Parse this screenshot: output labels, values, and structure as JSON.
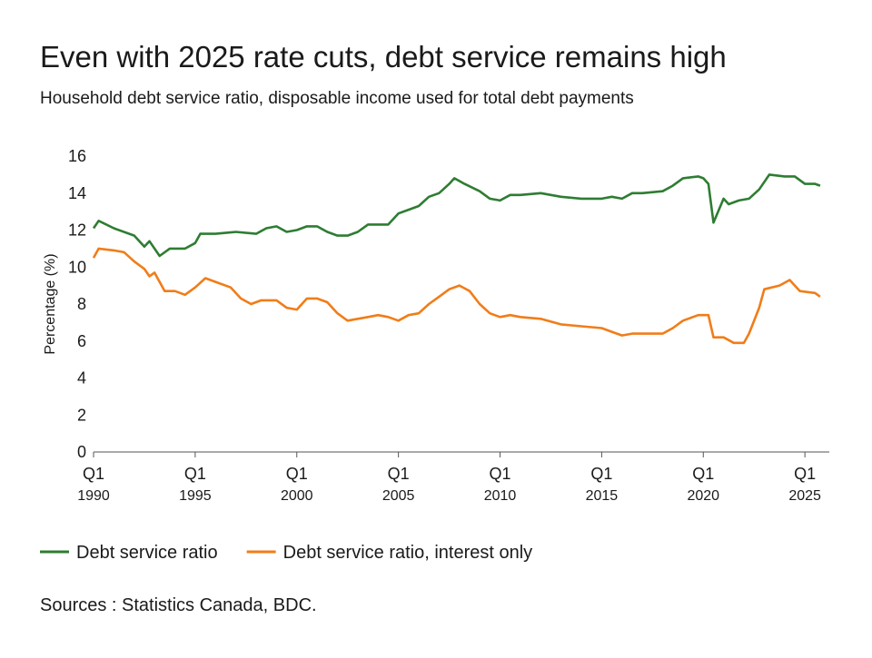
{
  "chart_data": {
    "type": "line",
    "title": "Even with 2025 rate cuts, debt service remains high",
    "subtitle": "Household debt service ratio, disposable income used for total debt payments",
    "y_label": "Percentage (%)",
    "source": "Sources : Statistics Canada, BDC.",
    "legend": "bottom-left",
    "grid": false,
    "xlim": [
      1990,
      2026.2
    ],
    "ylim": [
      0,
      16
    ],
    "yticks": [
      0,
      2,
      4,
      6,
      8,
      10,
      12,
      14,
      16
    ],
    "xticks": [
      {
        "value": 1990,
        "label": "1990",
        "period": "Q1"
      },
      {
        "value": 1995,
        "label": "1995",
        "period": "Q1"
      },
      {
        "value": 2000,
        "label": "2000",
        "period": "Q1"
      },
      {
        "value": 2005,
        "label": "2005",
        "period": "Q1"
      },
      {
        "value": 2010,
        "label": "2010",
        "period": "Q1"
      },
      {
        "value": 2015,
        "label": "2015",
        "period": "Q1"
      },
      {
        "value": 2020,
        "label": "2020",
        "period": "Q1"
      },
      {
        "value": 2025,
        "label": "2025",
        "period": "Q1"
      }
    ],
    "series": [
      {
        "name": "Debt service ratio",
        "color": "#2e7d32",
        "x": [
          1990,
          1990.25,
          1991,
          1992,
          1992.5,
          1992.75,
          1993.25,
          1993.75,
          1994.5,
          1995,
          1995.25,
          1996,
          1997,
          1998,
          1998.5,
          1999,
          1999.5,
          2000,
          2000.5,
          2001,
          2001.5,
          2002,
          2002.5,
          2003,
          2003.5,
          2004,
          2004.5,
          2005,
          2005.5,
          2006,
          2006.5,
          2007,
          2007.5,
          2007.75,
          2008.25,
          2009,
          2009.5,
          2010,
          2010.5,
          2011,
          2012,
          2013,
          2014,
          2015,
          2015.5,
          2016,
          2016.5,
          2017,
          2018,
          2018.5,
          2019,
          2019.75,
          2020,
          2020.25,
          2020.5,
          2021,
          2021.25,
          2021.75,
          2022.25,
          2022.75,
          2023.25,
          2024,
          2024.5,
          2025,
          2025.5,
          2025.75
        ],
        "values": [
          12.1,
          12.5,
          12.1,
          11.7,
          11.1,
          11.4,
          10.6,
          11.0,
          11.0,
          11.3,
          11.8,
          11.8,
          11.9,
          11.8,
          12.1,
          12.2,
          11.9,
          12.0,
          12.2,
          12.2,
          11.9,
          11.7,
          11.7,
          11.9,
          12.3,
          12.3,
          12.3,
          12.9,
          13.1,
          13.3,
          13.8,
          14.0,
          14.5,
          14.8,
          14.5,
          14.1,
          13.7,
          13.6,
          13.9,
          13.9,
          14.0,
          13.8,
          13.7,
          13.7,
          13.8,
          13.7,
          14.0,
          14.0,
          14.1,
          14.4,
          14.8,
          14.9,
          14.8,
          14.5,
          12.4,
          13.7,
          13.4,
          13.6,
          13.7,
          14.2,
          15.0,
          14.9,
          14.9,
          14.5,
          14.5,
          14.4
        ]
      },
      {
        "name": "Debt service ratio, interest only",
        "color": "#f07d19",
        "x": [
          1990,
          1990.25,
          1991,
          1991.5,
          1992,
          1992.5,
          1992.75,
          1993,
          1993.5,
          1994,
          1994.5,
          1995,
          1995.5,
          1996,
          1996.75,
          1997.25,
          1997.75,
          1998.25,
          1999,
          1999.5,
          2000,
          2000.5,
          2001,
          2001.5,
          2002,
          2002.5,
          2003,
          2003.5,
          2004,
          2004.5,
          2005,
          2005.5,
          2006,
          2006.5,
          2007,
          2007.5,
          2008,
          2008.5,
          2009,
          2009.5,
          2010,
          2010.5,
          2011,
          2012,
          2013,
          2014,
          2015,
          2015.5,
          2016,
          2016.5,
          2017,
          2018,
          2018.5,
          2019,
          2019.75,
          2020.25,
          2020.5,
          2021,
          2021.5,
          2022,
          2022.25,
          2022.75,
          2023,
          2023.75,
          2024.25,
          2024.75,
          2025.5,
          2025.75
        ],
        "values": [
          10.5,
          11.0,
          10.9,
          10.8,
          10.3,
          9.9,
          9.5,
          9.7,
          8.7,
          8.7,
          8.5,
          8.9,
          9.4,
          9.2,
          8.9,
          8.3,
          8.0,
          8.2,
          8.2,
          7.8,
          7.7,
          8.3,
          8.3,
          8.1,
          7.5,
          7.1,
          7.2,
          7.3,
          7.4,
          7.3,
          7.1,
          7.4,
          7.5,
          8.0,
          8.4,
          8.8,
          9.0,
          8.7,
          8.0,
          7.5,
          7.3,
          7.4,
          7.3,
          7.2,
          6.9,
          6.8,
          6.7,
          6.5,
          6.3,
          6.4,
          6.4,
          6.4,
          6.7,
          7.1,
          7.4,
          7.4,
          6.2,
          6.2,
          5.9,
          5.9,
          6.4,
          7.8,
          8.8,
          9.0,
          9.3,
          8.7,
          8.6,
          8.4
        ]
      }
    ]
  }
}
